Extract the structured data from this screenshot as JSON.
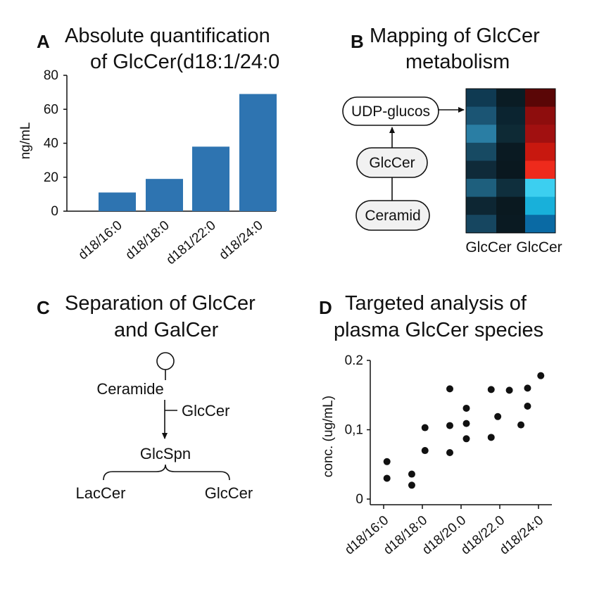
{
  "panels": {
    "A": {
      "label": "A",
      "title_line1": "Absolute quantification",
      "title_line2": "of GlcCer(d18:1/24:0"
    },
    "B": {
      "label": "B",
      "title_line1": "Mapping of GlcCer",
      "title_line2": "metabolism",
      "nodes": [
        "UDP-glucos",
        "GlcCer",
        "Ceramid"
      ],
      "column_labels": [
        "GlcCer",
        "GlcCer"
      ],
      "heatmap_colors": [
        [
          "#0f3a52",
          "#0a1c24",
          "#5a0606"
        ],
        [
          "#1b5574",
          "#0b2430",
          "#8e0d0d"
        ],
        [
          "#2a7ea4",
          "#0e2a35",
          "#a11010"
        ],
        [
          "#174a63",
          "#0a1a22",
          "#c8180f"
        ],
        [
          "#0f2a39",
          "#0a181f",
          "#ee2a1c"
        ],
        [
          "#1e5f7d",
          "#0f2f3d",
          "#3ccff0"
        ],
        [
          "#0d2633",
          "#0a1920",
          "#18b0da"
        ],
        [
          "#164660",
          "#0a1a22",
          "#0a6aa4"
        ]
      ]
    },
    "C": {
      "label": "C",
      "title_line1": "Separation of GlcCer",
      "title_line2": "and GalCer",
      "ceramide": "Ceramide",
      "enzyme": "GlcCer",
      "product": "GlcSpn",
      "left": "LacCer",
      "right": "GlcCer"
    },
    "D": {
      "label": "D",
      "title_line1": "Targeted analysis of",
      "title_line2": "plasma GlcCer species"
    }
  },
  "chart_data": [
    {
      "panel": "A",
      "type": "bar",
      "categories": [
        "d18/16:0",
        "d18/18:0",
        "d181/22:0",
        "d18/24:0"
      ],
      "values": [
        11,
        19,
        38,
        69
      ],
      "ylabel": "ng/mL",
      "ylim": [
        0,
        80
      ],
      "yticks": [
        "0",
        "20",
        "40",
        "60",
        "80"
      ],
      "color": "#2e74b1"
    },
    {
      "panel": "B",
      "type": "heatmap",
      "rows": 8,
      "columns": 3,
      "column_labels": [
        "GlcCer",
        "GlcCer"
      ]
    },
    {
      "panel": "D",
      "type": "scatter",
      "ylabel": "conc. (ug/mL)",
      "ylim": [
        0,
        0.2
      ],
      "yticks": [
        "0",
        "0,1",
        "0.2"
      ],
      "xticks": [
        "d18/16:0",
        "d18/18:0",
        "d18/20.0",
        "d18/22.0",
        "d18/24:0"
      ],
      "points": [
        {
          "x": 0.1,
          "y": 0.054
        },
        {
          "x": 0.1,
          "y": 0.03
        },
        {
          "x": 0.85,
          "y": 0.036
        },
        {
          "x": 0.85,
          "y": 0.02
        },
        {
          "x": 1.25,
          "y": 0.103
        },
        {
          "x": 1.25,
          "y": 0.07
        },
        {
          "x": 2.0,
          "y": 0.159
        },
        {
          "x": 2.0,
          "y": 0.106
        },
        {
          "x": 2.0,
          "y": 0.067
        },
        {
          "x": 2.5,
          "y": 0.131
        },
        {
          "x": 2.5,
          "y": 0.109
        },
        {
          "x": 2.5,
          "y": 0.087
        },
        {
          "x": 3.25,
          "y": 0.158
        },
        {
          "x": 3.25,
          "y": 0.089
        },
        {
          "x": 3.45,
          "y": 0.119
        },
        {
          "x": 3.8,
          "y": 0.157
        },
        {
          "x": 4.15,
          "y": 0.107
        },
        {
          "x": 4.35,
          "y": 0.16
        },
        {
          "x": 4.35,
          "y": 0.134
        },
        {
          "x": 4.75,
          "y": 0.178
        }
      ]
    }
  ]
}
